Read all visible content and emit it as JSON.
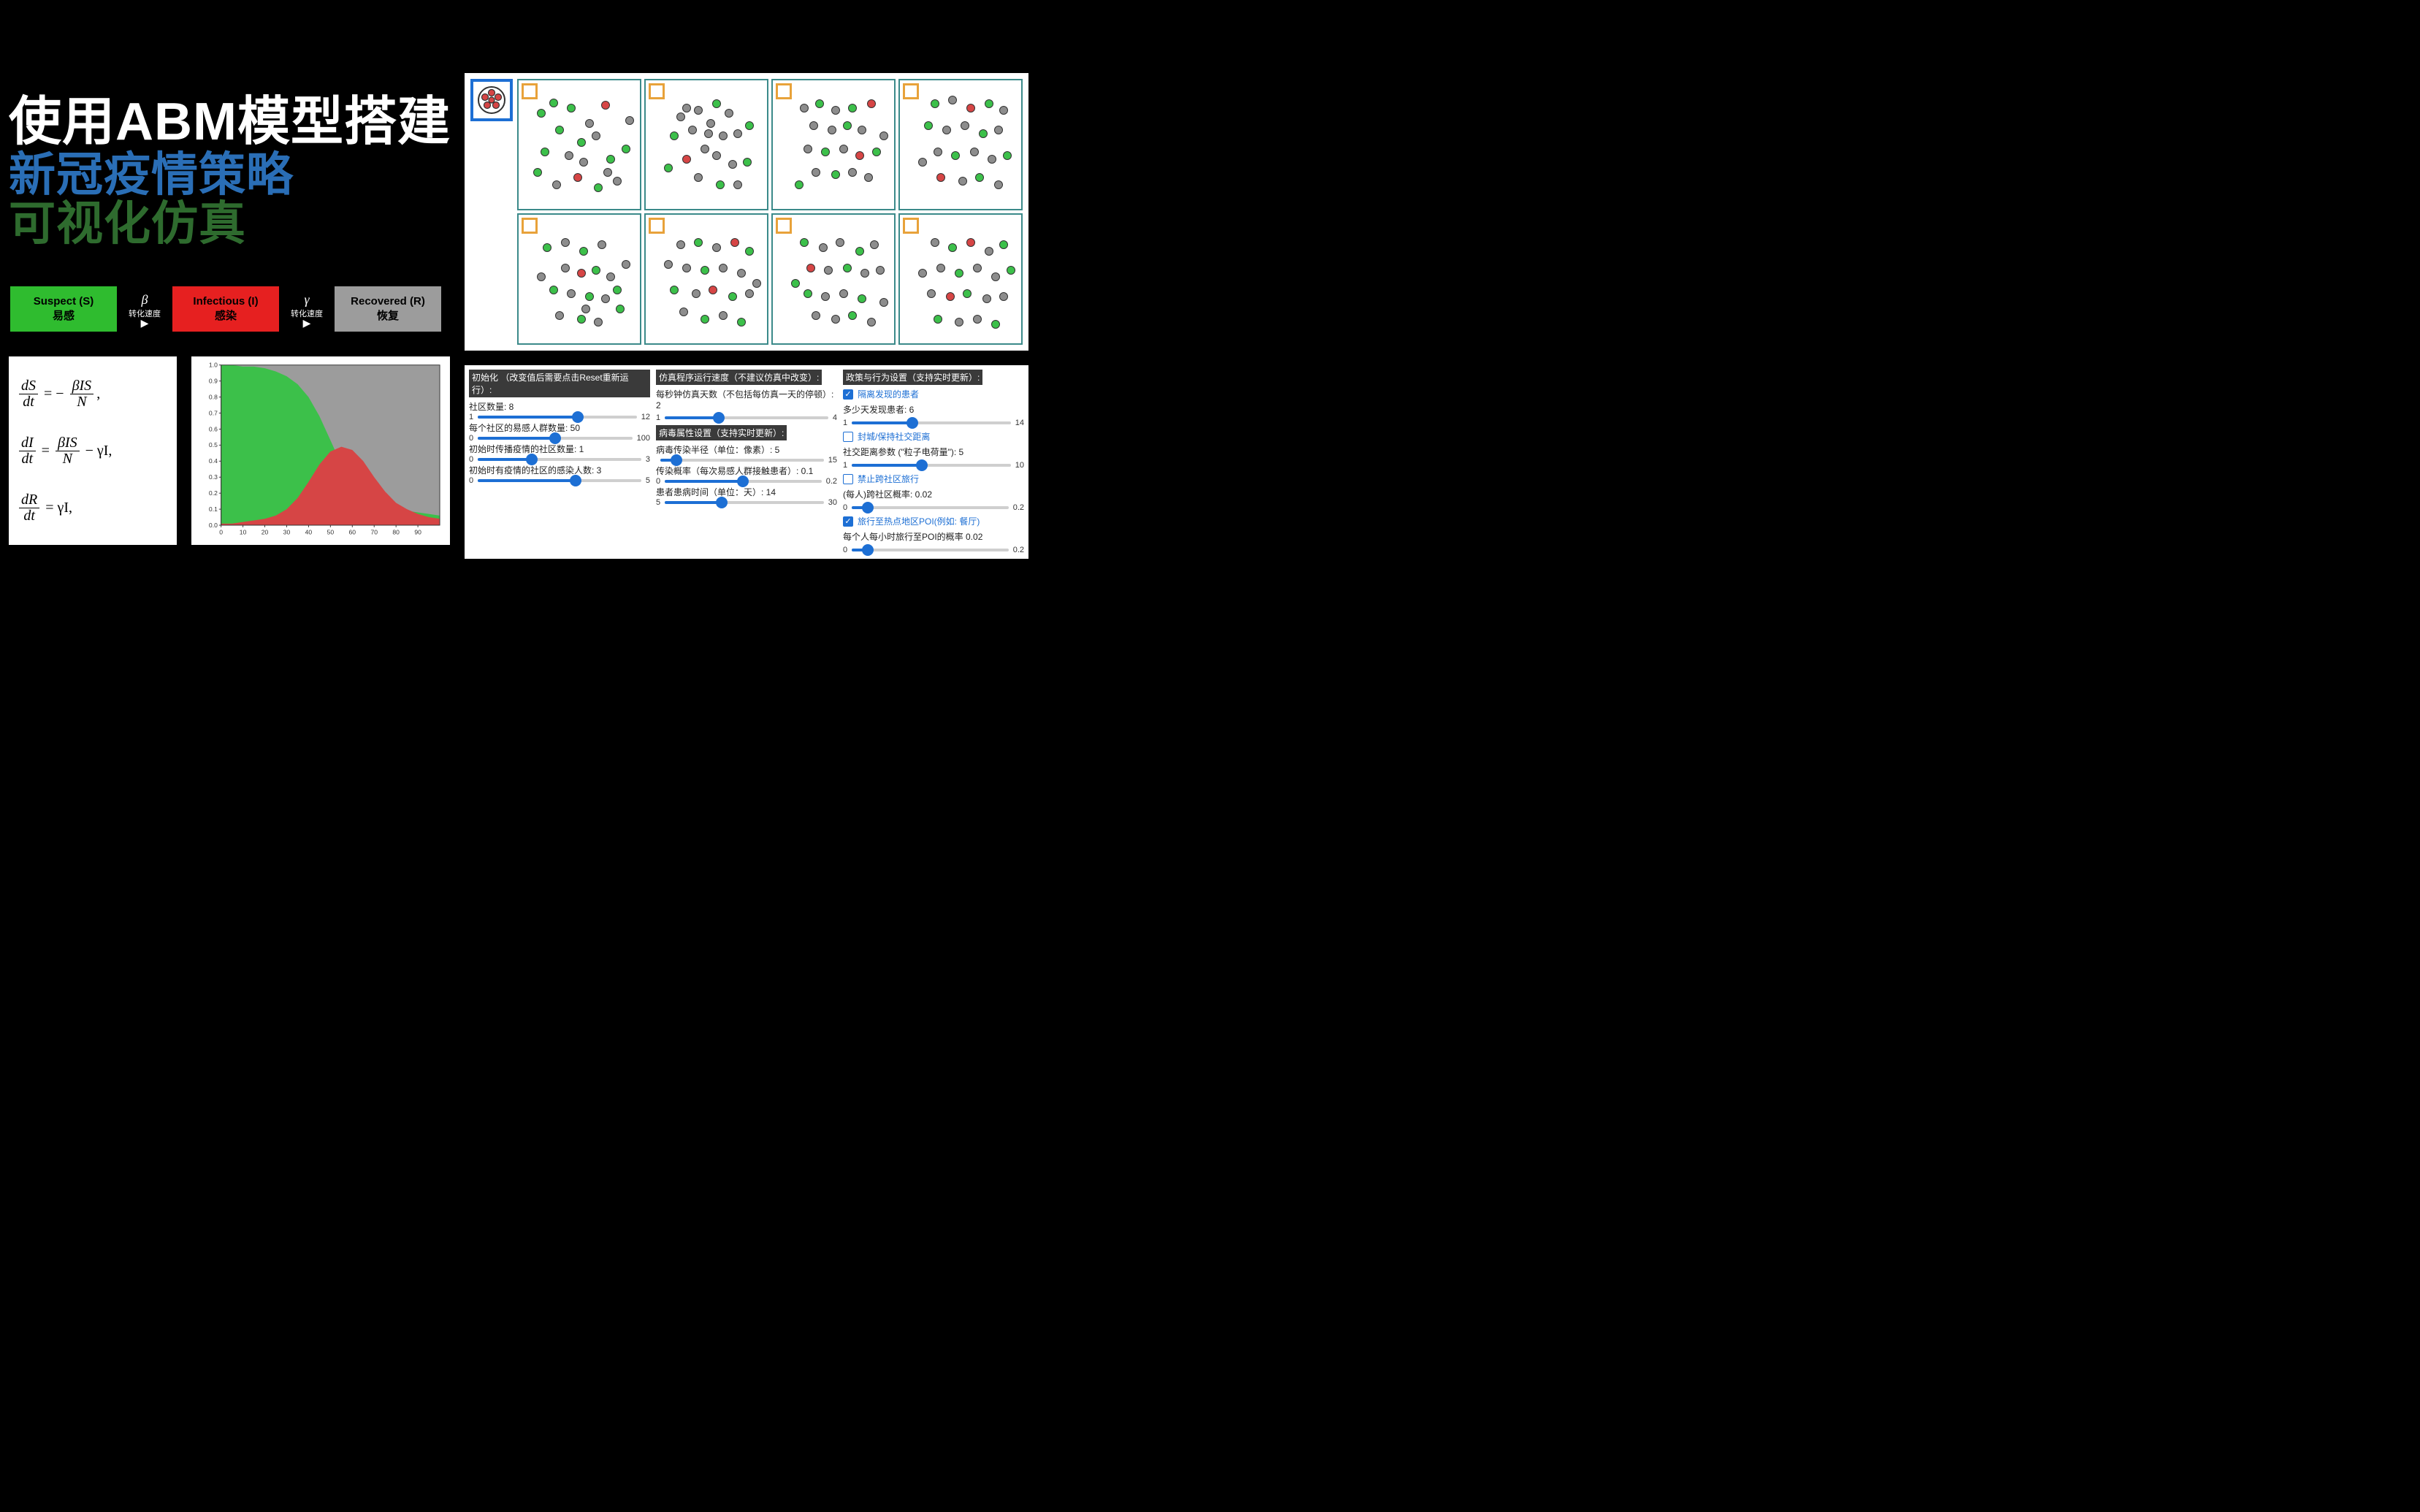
{
  "title": {
    "line1": "使用ABM模型搭建",
    "line2": "新冠疫情策略",
    "line3": "可视化仿真",
    "color1": "#ffffff",
    "color2": "#2a6eb6",
    "color3": "#2e6b2e"
  },
  "sir": {
    "s": {
      "en": "Suspect (S)",
      "zh": "易感",
      "bg": "#2fbc2f"
    },
    "i": {
      "en": "Infectious (I)",
      "zh": "感染",
      "bg": "#e62020"
    },
    "r": {
      "en": "Recovered (R)",
      "zh": "恢复",
      "bg": "#9c9c9c"
    },
    "arrow1": {
      "symbol": "β",
      "label": "转化速度"
    },
    "arrow2": {
      "symbol": "γ",
      "label": "转化速度"
    }
  },
  "equations": {
    "eq1": {
      "lhs_num": "dS",
      "lhs_den": "dt",
      "eq": "= −",
      "r_num": "βIS",
      "r_den": "N",
      "tail": ","
    },
    "eq2": {
      "lhs_num": "dI",
      "lhs_den": "dt",
      "eq": "=",
      "r_num": "βIS",
      "r_den": "N",
      "tail": "− γI,"
    },
    "eq3": {
      "lhs_num": "dR",
      "lhs_den": "dt",
      "eq": "= γI,",
      "r_num": "",
      "r_den": "",
      "tail": ""
    }
  },
  "chart": {
    "type": "stacked-area",
    "xlim": [
      0,
      100
    ],
    "ylim": [
      0,
      1.0
    ],
    "xtick_step": 10,
    "ytick_step": 0.1,
    "xticks": [
      "0",
      "10",
      "20",
      "30",
      "40",
      "50",
      "60",
      "70",
      "80",
      "90"
    ],
    "yticks": [
      "0.0",
      "0.1",
      "0.2",
      "0.3",
      "0.4",
      "0.5",
      "0.6",
      "0.7",
      "0.8",
      "0.9",
      "1.0"
    ],
    "background": "#ffffff",
    "axis_color": "#333333",
    "tick_fontsize": 9,
    "series": {
      "S": {
        "color": "#3cc04a"
      },
      "I": {
        "color": "#d64545"
      },
      "R": {
        "color": "#9c9c9c"
      }
    },
    "x": [
      0,
      5,
      10,
      15,
      20,
      25,
      30,
      35,
      40,
      45,
      50,
      55,
      60,
      65,
      70,
      75,
      80,
      85,
      90,
      95,
      100
    ],
    "S_top": [
      1.0,
      1.0,
      0.99,
      0.99,
      0.98,
      0.96,
      0.93,
      0.88,
      0.8,
      0.68,
      0.53,
      0.38,
      0.27,
      0.19,
      0.14,
      0.11,
      0.1,
      0.09,
      0.08,
      0.07,
      0.06
    ],
    "I_top": [
      0.01,
      0.01,
      0.02,
      0.03,
      0.04,
      0.06,
      0.1,
      0.17,
      0.27,
      0.38,
      0.46,
      0.49,
      0.47,
      0.4,
      0.3,
      0.21,
      0.14,
      0.1,
      0.07,
      0.05,
      0.04
    ]
  },
  "sim": {
    "hub_border": "#1d6fd4",
    "cell_border": "#3b8a8a",
    "store_border": "#e8a23a",
    "rows": 2,
    "cols": 4,
    "dot_colors": {
      "g": "#3cc04a",
      "r": "#d64545",
      "x": "#8d8d8d"
    },
    "cells": [
      {
        "dots": [
          [
            "g",
            15,
            22
          ],
          [
            "g",
            25,
            14
          ],
          [
            "g",
            40,
            18
          ],
          [
            "r",
            68,
            16
          ],
          [
            "g",
            30,
            35
          ],
          [
            "x",
            55,
            30
          ],
          [
            "x",
            60,
            40
          ],
          [
            "g",
            18,
            52
          ],
          [
            "x",
            38,
            55
          ],
          [
            "x",
            50,
            60
          ],
          [
            "g",
            72,
            58
          ],
          [
            "g",
            85,
            50
          ],
          [
            "r",
            45,
            72
          ],
          [
            "x",
            28,
            78
          ],
          [
            "g",
            62,
            80
          ],
          [
            "x",
            78,
            75
          ],
          [
            "g",
            12,
            68
          ],
          [
            "x",
            88,
            28
          ],
          [
            "g",
            48,
            45
          ],
          [
            "x",
            70,
            68
          ]
        ]
      },
      {
        "dots": [
          [
            "x",
            30,
            18
          ],
          [
            "x",
            40,
            20
          ],
          [
            "g",
            55,
            15
          ],
          [
            "x",
            65,
            22
          ],
          [
            "x",
            50,
            30
          ],
          [
            "x",
            35,
            35
          ],
          [
            "g",
            20,
            40
          ],
          [
            "x",
            60,
            40
          ],
          [
            "x",
            72,
            38
          ],
          [
            "g",
            82,
            32
          ],
          [
            "x",
            45,
            50
          ],
          [
            "x",
            55,
            55
          ],
          [
            "r",
            30,
            58
          ],
          [
            "g",
            15,
            65
          ],
          [
            "x",
            68,
            62
          ],
          [
            "g",
            80,
            60
          ],
          [
            "x",
            40,
            72
          ],
          [
            "g",
            58,
            78
          ],
          [
            "x",
            72,
            78
          ],
          [
            "x",
            25,
            25
          ],
          [
            "x",
            48,
            38
          ]
        ]
      },
      {
        "dots": [
          [
            "x",
            22,
            18
          ],
          [
            "g",
            35,
            15
          ],
          [
            "x",
            48,
            20
          ],
          [
            "g",
            62,
            18
          ],
          [
            "r",
            78,
            15
          ],
          [
            "x",
            30,
            32
          ],
          [
            "x",
            45,
            35
          ],
          [
            "g",
            58,
            32
          ],
          [
            "x",
            70,
            35
          ],
          [
            "x",
            25,
            50
          ],
          [
            "g",
            40,
            52
          ],
          [
            "x",
            55,
            50
          ],
          [
            "r",
            68,
            55
          ],
          [
            "g",
            82,
            52
          ],
          [
            "x",
            32,
            68
          ],
          [
            "g",
            48,
            70
          ],
          [
            "x",
            62,
            68
          ],
          [
            "x",
            75,
            72
          ],
          [
            "g",
            18,
            78
          ],
          [
            "x",
            88,
            40
          ]
        ]
      },
      {
        "dots": [
          [
            "g",
            25,
            15
          ],
          [
            "x",
            40,
            12
          ],
          [
            "r",
            55,
            18
          ],
          [
            "g",
            70,
            15
          ],
          [
            "x",
            82,
            20
          ],
          [
            "g",
            20,
            32
          ],
          [
            "x",
            35,
            35
          ],
          [
            "x",
            50,
            32
          ],
          [
            "g",
            65,
            38
          ],
          [
            "x",
            78,
            35
          ],
          [
            "x",
            28,
            52
          ],
          [
            "g",
            42,
            55
          ],
          [
            "x",
            58,
            52
          ],
          [
            "x",
            72,
            58
          ],
          [
            "g",
            85,
            55
          ],
          [
            "r",
            30,
            72
          ],
          [
            "x",
            48,
            75
          ],
          [
            "g",
            62,
            72
          ],
          [
            "x",
            78,
            78
          ],
          [
            "x",
            15,
            60
          ]
        ]
      },
      {
        "dots": [
          [
            "g",
            20,
            22
          ],
          [
            "x",
            35,
            18
          ],
          [
            "g",
            50,
            25
          ],
          [
            "x",
            65,
            20
          ],
          [
            "x",
            35,
            38
          ],
          [
            "r",
            48,
            42
          ],
          [
            "g",
            60,
            40
          ],
          [
            "x",
            72,
            45
          ],
          [
            "g",
            25,
            55
          ],
          [
            "x",
            40,
            58
          ],
          [
            "g",
            55,
            60
          ],
          [
            "x",
            68,
            62
          ],
          [
            "x",
            30,
            75
          ],
          [
            "g",
            48,
            78
          ],
          [
            "x",
            62,
            80
          ],
          [
            "g",
            80,
            70
          ],
          [
            "x",
            15,
            45
          ],
          [
            "x",
            85,
            35
          ],
          [
            "g",
            78,
            55
          ],
          [
            "x",
            52,
            70
          ]
        ]
      },
      {
        "dots": [
          [
            "x",
            25,
            20
          ],
          [
            "g",
            40,
            18
          ],
          [
            "x",
            55,
            22
          ],
          [
            "r",
            70,
            18
          ],
          [
            "g",
            82,
            25
          ],
          [
            "x",
            30,
            38
          ],
          [
            "g",
            45,
            40
          ],
          [
            "x",
            60,
            38
          ],
          [
            "x",
            75,
            42
          ],
          [
            "g",
            20,
            55
          ],
          [
            "x",
            38,
            58
          ],
          [
            "r",
            52,
            55
          ],
          [
            "g",
            68,
            60
          ],
          [
            "x",
            82,
            58
          ],
          [
            "x",
            28,
            72
          ],
          [
            "g",
            45,
            78
          ],
          [
            "x",
            60,
            75
          ],
          [
            "g",
            75,
            80
          ],
          [
            "x",
            15,
            35
          ],
          [
            "x",
            88,
            50
          ]
        ]
      },
      {
        "dots": [
          [
            "g",
            22,
            18
          ],
          [
            "x",
            38,
            22
          ],
          [
            "x",
            52,
            18
          ],
          [
            "g",
            68,
            25
          ],
          [
            "x",
            80,
            20
          ],
          [
            "r",
            28,
            38
          ],
          [
            "x",
            42,
            40
          ],
          [
            "g",
            58,
            38
          ],
          [
            "x",
            72,
            42
          ],
          [
            "x",
            85,
            40
          ],
          [
            "g",
            25,
            58
          ],
          [
            "x",
            40,
            60
          ],
          [
            "x",
            55,
            58
          ],
          [
            "g",
            70,
            62
          ],
          [
            "x",
            32,
            75
          ],
          [
            "x",
            48,
            78
          ],
          [
            "g",
            62,
            75
          ],
          [
            "x",
            78,
            80
          ],
          [
            "g",
            15,
            50
          ],
          [
            "x",
            88,
            65
          ]
        ]
      },
      {
        "dots": [
          [
            "x",
            25,
            18
          ],
          [
            "g",
            40,
            22
          ],
          [
            "r",
            55,
            18
          ],
          [
            "x",
            70,
            25
          ],
          [
            "g",
            82,
            20
          ],
          [
            "x",
            30,
            38
          ],
          [
            "g",
            45,
            42
          ],
          [
            "x",
            60,
            38
          ],
          [
            "x",
            75,
            45
          ],
          [
            "g",
            88,
            40
          ],
          [
            "x",
            22,
            58
          ],
          [
            "r",
            38,
            60
          ],
          [
            "g",
            52,
            58
          ],
          [
            "x",
            68,
            62
          ],
          [
            "x",
            82,
            60
          ],
          [
            "g",
            28,
            78
          ],
          [
            "x",
            45,
            80
          ],
          [
            "x",
            60,
            78
          ],
          [
            "g",
            75,
            82
          ],
          [
            "x",
            15,
            42
          ]
        ]
      }
    ]
  },
  "controls": {
    "col1": {
      "header": "初始化 （改变值后需要点击Reset重新运行）:",
      "items": [
        {
          "label": "社区数量: 8",
          "min": "1",
          "max": "12",
          "pct": 63
        },
        {
          "label": "每个社区的易感人群数量: 50",
          "min": "0",
          "max": "100",
          "pct": 50
        },
        {
          "label": "初始时传播疫情的社区数量: 1",
          "min": "0",
          "max": "3",
          "pct": 33
        },
        {
          "label": "初始时有疫情的社区的感染人数: 3",
          "min": "0",
          "max": "5",
          "pct": 60
        }
      ]
    },
    "col2": {
      "header1": "仿真程序运行速度（不建议仿真中改变）:",
      "item1": {
        "label": "每秒钟仿真天数（不包括每仿真一天的停顿）: 2",
        "min": "1",
        "max": "4",
        "pct": 33
      },
      "header2": "病毒属性设置（支持实时更新）:",
      "items2": [
        {
          "label": "病毒传染半径（单位：像素）: 5",
          "min": "",
          "max": "15",
          "pct": 10
        },
        {
          "label": "传染概率（每次易感人群接触患者）: 0.1",
          "min": "0",
          "max": "0.2",
          "pct": 50
        },
        {
          "label": "患者患病时间（单位：天）: 14",
          "min": "5",
          "max": "30",
          "pct": 36
        }
      ]
    },
    "col3": {
      "header": "政策与行为设置（支持实时更新）:",
      "chk1": {
        "checked": true,
        "label": "隔离发现的患者"
      },
      "s1": {
        "label": "多少天发现患者: 6",
        "min": "1",
        "max": "14",
        "pct": 38
      },
      "chk2": {
        "checked": false,
        "label": "封城/保持社交距离"
      },
      "s2": {
        "label": "社交距离参数 (\"粒子电荷量\"): 5",
        "min": "1",
        "max": "10",
        "pct": 44
      },
      "chk3": {
        "checked": false,
        "label": "禁止跨社区旅行"
      },
      "s3": {
        "label": "(每人)跨社区概率: 0.02",
        "min": "0",
        "max": "0.2",
        "pct": 10
      },
      "chk4": {
        "checked": true,
        "label": "旅行至热点地区POI(例如: 餐厅)"
      },
      "s4": {
        "label": "每个人每小时旅行至POI的概率 0.02",
        "min": "0",
        "max": "0.2",
        "pct": 10
      }
    }
  }
}
